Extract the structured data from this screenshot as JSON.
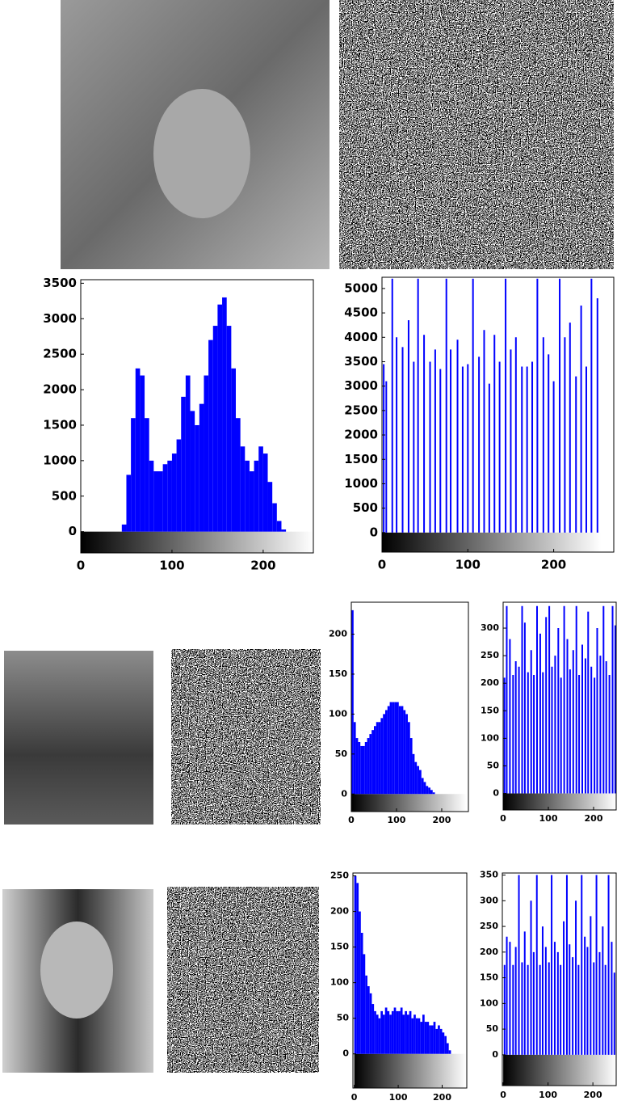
{
  "chart_data": [
    {
      "type": "histogram",
      "color": "#0000ff",
      "bins": [
        0,
        5,
        10,
        15,
        20,
        25,
        30,
        35,
        40,
        45,
        50,
        55,
        60,
        65,
        70,
        75,
        80,
        85,
        90,
        95,
        100,
        105,
        110,
        115,
        120,
        125,
        130,
        135,
        140,
        145,
        150,
        155,
        160,
        165,
        170,
        175,
        180,
        185,
        190,
        195,
        200,
        205,
        210,
        215,
        220,
        225,
        230,
        235,
        240,
        245,
        250,
        255
      ],
      "values": [
        0,
        0,
        0,
        0,
        0,
        0,
        0,
        0,
        0,
        100,
        800,
        1600,
        2300,
        2200,
        1600,
        1000,
        850,
        850,
        950,
        1000,
        1100,
        1300,
        1900,
        2200,
        1700,
        1500,
        1800,
        2200,
        2700,
        2900,
        3200,
        3300,
        2900,
        2300,
        1600,
        1200,
        1000,
        850,
        1000,
        1200,
        1100,
        700,
        400,
        150,
        30,
        0,
        0,
        0,
        0,
        0,
        0
      ],
      "xlim": [
        0,
        255
      ],
      "xticks": [
        0,
        100,
        200
      ],
      "ylim": [
        -300,
        3550
      ],
      "yticks": [
        0,
        500,
        1000,
        1500,
        2000,
        2500,
        3000,
        3500
      ]
    },
    {
      "type": "spike",
      "color": "#0000ff",
      "x": [
        2,
        5,
        12,
        17,
        24,
        31,
        37,
        42,
        49,
        56,
        62,
        68,
        75,
        80,
        88,
        94,
        100,
        106,
        113,
        119,
        125,
        131,
        137,
        144,
        150,
        156,
        163,
        169,
        175,
        181,
        188,
        194,
        200,
        207,
        213,
        219,
        226,
        232,
        238,
        244,
        251
      ],
      "values": [
        3450,
        3100,
        5200,
        4000,
        3800,
        4350,
        3500,
        5200,
        4050,
        3500,
        3750,
        3350,
        5200,
        3750,
        3950,
        3400,
        3450,
        5200,
        3600,
        4150,
        3050,
        4050,
        3500,
        5200,
        3750,
        4000,
        3400,
        3400,
        3500,
        5200,
        4000,
        3650,
        3100,
        5200,
        4000,
        4300,
        3200,
        4650,
        3400,
        5200,
        4800
      ],
      "xlim": [
        0,
        270
      ],
      "xticks": [
        0,
        100,
        200
      ],
      "ylim": [
        -400,
        5230
      ],
      "yticks": [
        0,
        500,
        1000,
        1500,
        2000,
        2500,
        3000,
        3500,
        4000,
        4500,
        5000
      ]
    },
    {
      "type": "histogram",
      "color": "#0000ff",
      "bins": [
        0,
        5,
        10,
        15,
        20,
        25,
        30,
        35,
        40,
        45,
        50,
        55,
        60,
        65,
        70,
        75,
        80,
        85,
        90,
        95,
        100,
        105,
        110,
        115,
        120,
        125,
        130,
        135,
        140,
        145,
        150,
        155,
        160,
        165,
        170,
        175,
        180,
        185,
        190,
        195,
        200,
        205,
        210,
        215,
        220,
        225,
        230,
        235,
        240,
        245,
        250,
        255
      ],
      "values": [
        230,
        90,
        70,
        65,
        60,
        60,
        65,
        70,
        75,
        80,
        85,
        90,
        90,
        95,
        100,
        105,
        110,
        115,
        115,
        115,
        115,
        110,
        110,
        105,
        100,
        90,
        70,
        50,
        40,
        35,
        30,
        20,
        15,
        10,
        8,
        5,
        2,
        0,
        0,
        0,
        0,
        0,
        0,
        0,
        0,
        0,
        0,
        0,
        0,
        0,
        0
      ],
      "xlim": [
        0,
        259
      ],
      "xticks": [
        0,
        100,
        200
      ],
      "ylim": [
        -22,
        240
      ],
      "yticks": [
        0,
        50,
        100,
        150,
        200
      ]
    },
    {
      "type": "spike",
      "color": "#0000ff",
      "x": [
        3,
        8,
        15,
        22,
        28,
        35,
        42,
        48,
        55,
        62,
        68,
        75,
        82,
        88,
        95,
        102,
        108,
        115,
        122,
        128,
        135,
        142,
        148,
        155,
        162,
        168,
        175,
        182,
        188,
        195,
        202,
        208,
        215,
        222,
        228,
        235,
        242,
        248
      ],
      "values": [
        210,
        340,
        280,
        215,
        240,
        230,
        340,
        310,
        220,
        260,
        215,
        340,
        290,
        220,
        320,
        340,
        230,
        250,
        300,
        210,
        340,
        280,
        225,
        260,
        340,
        215,
        270,
        245,
        330,
        230,
        210,
        300,
        250,
        340,
        240,
        215,
        340,
        305
      ],
      "xlim": [
        0,
        250
      ],
      "xticks": [
        0,
        100,
        200
      ],
      "ylim": [
        -30,
        347
      ],
      "yticks": [
        0,
        50,
        100,
        150,
        200,
        250,
        300
      ]
    },
    {
      "type": "histogram",
      "color": "#0000ff",
      "bins": [
        0,
        5,
        10,
        15,
        20,
        25,
        30,
        35,
        40,
        45,
        50,
        55,
        60,
        65,
        70,
        75,
        80,
        85,
        90,
        95,
        100,
        105,
        110,
        115,
        120,
        125,
        130,
        135,
        140,
        145,
        150,
        155,
        160,
        165,
        170,
        175,
        180,
        185,
        190,
        195,
        200,
        205,
        210,
        215,
        220,
        225,
        230,
        235,
        240,
        245,
        250,
        255
      ],
      "values": [
        250,
        240,
        200,
        170,
        140,
        110,
        95,
        85,
        70,
        60,
        55,
        50,
        60,
        55,
        65,
        60,
        55,
        60,
        65,
        60,
        60,
        65,
        55,
        60,
        55,
        60,
        50,
        55,
        50,
        50,
        45,
        55,
        45,
        45,
        40,
        40,
        45,
        35,
        40,
        35,
        30,
        25,
        15,
        5,
        0,
        0,
        0,
        0,
        0,
        0,
        0
      ],
      "xlim": [
        -3,
        256
      ],
      "xticks": [
        0,
        100,
        200
      ],
      "ylim": [
        -48,
        254
      ],
      "yticks": [
        0,
        50,
        100,
        150,
        200,
        250
      ]
    },
    {
      "type": "spike",
      "color": "#0000ff",
      "x": [
        3,
        8,
        15,
        22,
        28,
        35,
        42,
        48,
        55,
        62,
        68,
        75,
        82,
        88,
        95,
        102,
        108,
        115,
        122,
        128,
        135,
        142,
        148,
        155,
        162,
        168,
        175,
        182,
        188,
        195,
        202,
        208,
        215,
        222,
        228,
        235,
        242,
        248
      ],
      "values": [
        175,
        230,
        220,
        175,
        210,
        350,
        180,
        240,
        175,
        300,
        200,
        350,
        175,
        250,
        210,
        180,
        350,
        220,
        200,
        175,
        260,
        350,
        215,
        190,
        300,
        175,
        350,
        230,
        210,
        270,
        180,
        350,
        200,
        250,
        175,
        350,
        220,
        160
      ],
      "xlim": [
        -2,
        252
      ],
      "xticks": [
        0,
        100,
        200
      ],
      "ylim": [
        -60,
        354
      ],
      "yticks": [
        0,
        50,
        100,
        150,
        200,
        250,
        300,
        350
      ]
    }
  ]
}
